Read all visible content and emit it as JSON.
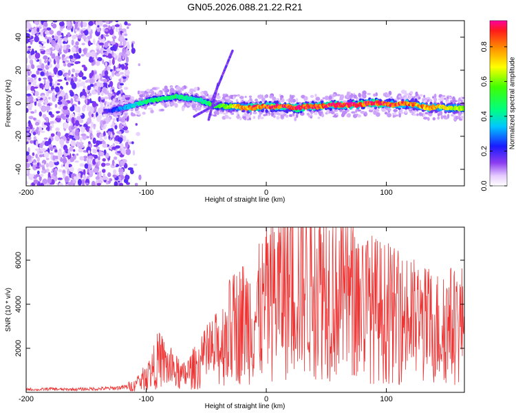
{
  "chart_data": [
    {
      "type": "heatmap",
      "title": "GN05.2026.088.21.22.R21",
      "xlabel": "Height of straight line (km)",
      "ylabel": "Frequency (Hz)",
      "xlim": [
        -200,
        165
      ],
      "ylim": [
        -50,
        50
      ],
      "xticks": [
        -200,
        -100,
        0,
        100
      ],
      "yticks": [
        -40,
        -20,
        0,
        20,
        40
      ],
      "colorbar": {
        "label": "Normalized spectral amplitude",
        "range": [
          0,
          0.95
        ],
        "ticks": [
          "0.0",
          "0.2",
          "0.4",
          "0.6",
          "0.8"
        ]
      },
      "ridge": {
        "x": [
          -135,
          -120,
          -105,
          -95,
          -85,
          -75,
          -65,
          -55,
          -45,
          -35,
          -25,
          -15,
          -5,
          5,
          15,
          25,
          35,
          45,
          55,
          65,
          75,
          85,
          95,
          105,
          115,
          125,
          135,
          145,
          155,
          165
        ],
        "freq": [
          -5,
          -3,
          0,
          2,
          3,
          4,
          3,
          2,
          -1,
          -2,
          -2,
          -3,
          -2,
          -2,
          -2,
          -3,
          -2,
          -2,
          -1,
          -1,
          -1,
          0,
          0,
          -1,
          0,
          -1,
          -3,
          -2,
          -3,
          -3
        ],
        "amplitude": [
          0.15,
          0.3,
          0.4,
          0.45,
          0.45,
          0.45,
          0.4,
          0.4,
          0.5,
          0.55,
          0.7,
          0.8,
          0.85,
          0.85,
          0.9,
          0.9,
          0.85,
          0.85,
          0.9,
          0.9,
          0.85,
          0.9,
          0.9,
          0.85,
          0.85,
          0.8,
          0.75,
          0.7,
          0.65,
          0.6
        ]
      }
    },
    {
      "type": "line",
      "title": "",
      "xlabel": "Height of straight line (km)",
      "ylabel": "SNR (10 * v/v)",
      "xlim": [
        -200,
        165
      ],
      "ylim": [
        0,
        7500
      ],
      "xticks": [
        -200,
        -100,
        0,
        100
      ],
      "yticks": [
        2000,
        4000,
        6000
      ],
      "series": [
        {
          "name": "SNR",
          "color": "#ee3333",
          "x": [
            -200,
            -190,
            -180,
            -170,
            -160,
            -150,
            -140,
            -130,
            -120,
            -110,
            -100,
            -95,
            -90,
            -85,
            -80,
            -75,
            -70,
            -65,
            -60,
            -55,
            -50,
            -45,
            -40,
            -35,
            -30,
            -25,
            -20,
            -15,
            -10,
            -5,
            0,
            5,
            10,
            15,
            20,
            25,
            30,
            35,
            40,
            45,
            50,
            55,
            60,
            65,
            70,
            75,
            80,
            85,
            90,
            95,
            100,
            105,
            110,
            115,
            120,
            125,
            130,
            135,
            140,
            145,
            150,
            155,
            160,
            165
          ],
          "values": [
            150,
            120,
            160,
            130,
            140,
            150,
            160,
            180,
            220,
            300,
            700,
            1000,
            1500,
            1300,
            1100,
            900,
            700,
            900,
            1100,
            1300,
            1600,
            1800,
            2000,
            2400,
            2800,
            3000,
            3200,
            3300,
            3400,
            3600,
            4000,
            4300,
            4600,
            4800,
            5000,
            5200,
            5400,
            5200,
            5100,
            5000,
            4800,
            4700,
            4600,
            4500,
            4300,
            4200,
            4000,
            3900,
            3800,
            3700,
            3600,
            3500,
            3400,
            3300,
            3300,
            3200,
            3100,
            3000,
            3000,
            2900,
            3000,
            3100,
            3000,
            3200
          ]
        }
      ]
    }
  ]
}
